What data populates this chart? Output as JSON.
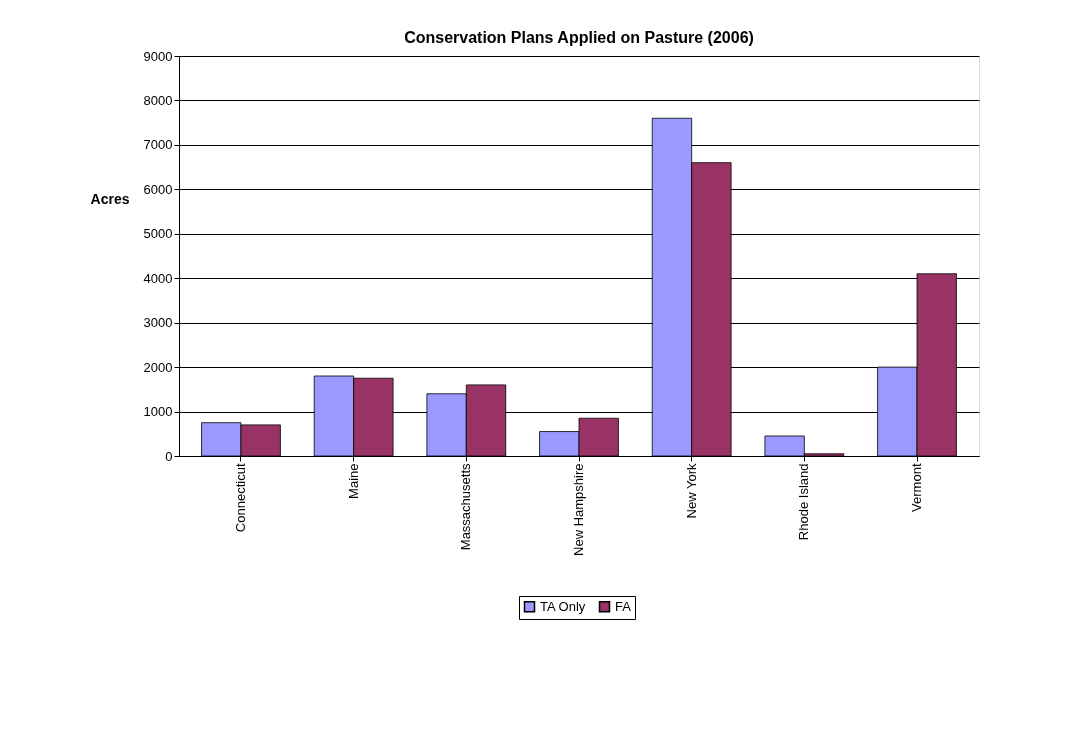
{
  "chart_data": {
    "type": "bar",
    "title": "Conservation Plans Applied on Pasture (2006)",
    "ylabel": "Acres",
    "categories": [
      "Connecticut",
      "Maine",
      "Massachusetts",
      "New Hampshire",
      "New York",
      "Rhode Island",
      "Vermont"
    ],
    "series": [
      {
        "name": "TA Only",
        "color": "#9999ff",
        "values": [
          750,
          1800,
          1400,
          550,
          7600,
          450,
          2000
        ]
      },
      {
        "name": "FA",
        "color": "#993366",
        "values": [
          700,
          1750,
          1600,
          850,
          6600,
          50,
          4100
        ]
      }
    ],
    "ylim": [
      0,
      9000
    ],
    "yticks": [
      0,
      1000,
      2000,
      3000,
      4000,
      5000,
      6000,
      7000,
      8000,
      9000
    ],
    "grid": "y",
    "legend": "bottom"
  }
}
